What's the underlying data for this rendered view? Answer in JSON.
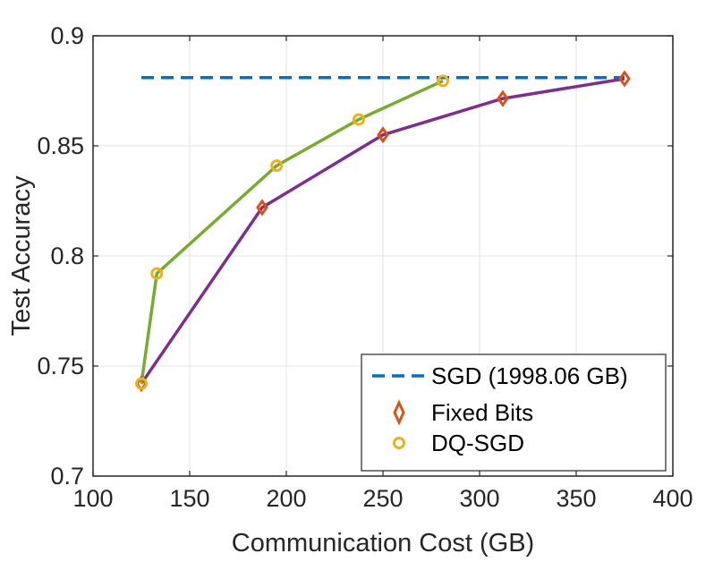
{
  "chart_data": {
    "type": "line",
    "xlabel": "Communication Cost (GB)",
    "ylabel": "Test Accuracy",
    "xlim": [
      100,
      400
    ],
    "ylim": [
      0.7,
      0.9
    ],
    "xticks": [
      100,
      150,
      200,
      250,
      300,
      350,
      400
    ],
    "xtick_labels": [
      "100",
      "150",
      "200",
      "250",
      "300",
      "350",
      "400"
    ],
    "yticks": [
      0.7,
      0.75,
      0.8,
      0.85,
      0.9
    ],
    "ytick_labels": [
      "0.7",
      "0.75",
      "0.8",
      "0.85",
      "0.9"
    ],
    "grid": true,
    "legend_position": "bottom-right",
    "series": [
      {
        "name": "SGD (1998.06 GB)",
        "style": "dashed",
        "marker": "none",
        "color": "#0072BD",
        "x": [
          125,
          375
        ],
        "y": [
          0.881,
          0.881
        ]
      },
      {
        "name": "Fixed Bits",
        "style": "solid",
        "marker": "diamond",
        "color": "#7E2F8E",
        "marker_color": "#D95319",
        "x": [
          125,
          187.5,
          250,
          312,
          375
        ],
        "y": [
          0.742,
          0.822,
          0.855,
          0.8715,
          0.8805
        ]
      },
      {
        "name": "DQ-SGD",
        "style": "solid",
        "marker": "circle",
        "color": "#77AC30",
        "marker_color": "#EDB120",
        "x": [
          125,
          133,
          195,
          237.5,
          281
        ],
        "y": [
          0.742,
          0.792,
          0.841,
          0.862,
          0.8795
        ]
      }
    ]
  }
}
